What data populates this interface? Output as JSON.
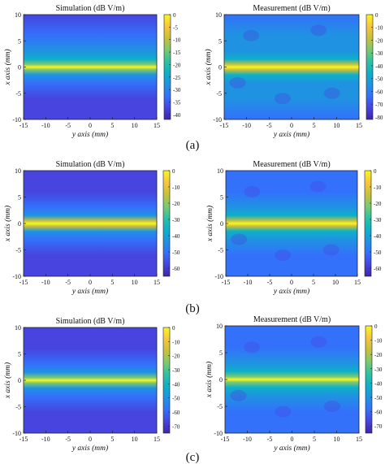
{
  "chart_data": [
    {
      "type": "heatmap",
      "panel": "(a)",
      "side": "simulation",
      "title": "Simulation (dB V/m)",
      "xlabel": "y axis (mm)",
      "ylabel": "x axis (mm)",
      "x_ticks": [
        "-15",
        "-10",
        "-5",
        "0",
        "5",
        "10",
        "15"
      ],
      "y_ticks": [
        "10",
        "5",
        "0",
        "-5",
        "-10"
      ],
      "xlim": [
        -15,
        15
      ],
      "ylim": [
        -10,
        10
      ],
      "colorbar_ticks": [
        "0",
        "-5",
        "-10",
        "-15",
        "-20",
        "-25",
        "-30",
        "-35",
        "-40"
      ],
      "clim": [
        -42,
        0
      ],
      "profile": {
        "x": [
          -10,
          -6,
          -3,
          -1.5,
          -0.5,
          0,
          0.5,
          1.5,
          3,
          6,
          10
        ],
        "dB": [
          -38,
          -36,
          -31,
          -26,
          -13,
          0,
          -12,
          -25,
          -30,
          -35,
          -38
        ]
      }
    },
    {
      "type": "heatmap",
      "panel": "(a)",
      "side": "measurement",
      "title": "Measurement (dB V/m)",
      "xlabel": "y axis (mm)",
      "ylabel": "x axis (mm)",
      "x_ticks": [
        "-15",
        "-10",
        "-5",
        "0",
        "5",
        "10",
        "15"
      ],
      "y_ticks": [
        "10",
        "5",
        "0",
        "-5",
        "-10"
      ],
      "xlim": [
        -15,
        15
      ],
      "ylim": [
        -10,
        10
      ],
      "colorbar_ticks": [
        "0",
        "-10",
        "-20",
        "-30",
        "-40",
        "-50",
        "-60",
        "-70",
        "-80"
      ],
      "clim": [
        -82,
        0
      ],
      "profile": {
        "x": [
          -10,
          -6,
          -3,
          -1.5,
          -0.5,
          0,
          0.5,
          1.5,
          3,
          6,
          10
        ],
        "dB": [
          -62,
          -58,
          -52,
          -42,
          -20,
          0,
          -20,
          -42,
          -52,
          -58,
          -62
        ]
      }
    },
    {
      "type": "heatmap",
      "panel": "(b)",
      "side": "simulation",
      "title": "Simulation (dB V/m)",
      "xlabel": "y axis (mm)",
      "ylabel": "x axis (mm)",
      "x_ticks": [
        "-15",
        "-10",
        "-5",
        "0",
        "5",
        "10",
        "15"
      ],
      "y_ticks": [
        "10",
        "5",
        "0",
        "-5",
        "-10"
      ],
      "xlim": [
        -15,
        15
      ],
      "ylim": [
        -10,
        10
      ],
      "colorbar_ticks": [
        "0",
        "-10",
        "-20",
        "-30",
        "-40",
        "-50",
        "-60"
      ],
      "clim": [
        -65,
        0
      ],
      "profile": {
        "x": [
          -10,
          -6,
          -3,
          -1.5,
          -0.5,
          0,
          0.5,
          1.5,
          3,
          6,
          10
        ],
        "dB": [
          -60,
          -56,
          -48,
          -40,
          -18,
          0,
          -18,
          -40,
          -48,
          -56,
          -60
        ]
      }
    },
    {
      "type": "heatmap",
      "panel": "(b)",
      "side": "measurement",
      "title": "Measurement (dB V/m)",
      "xlabel": "y axis (mm)",
      "ylabel": "x axis (mm)",
      "x_ticks": [
        "-15",
        "-10",
        "-5",
        "0",
        "5",
        "10",
        "15"
      ],
      "y_ticks": [
        "10",
        "5",
        "0",
        "-5",
        "-10"
      ],
      "xlim": [
        -15,
        15
      ],
      "ylim": [
        -10,
        10
      ],
      "colorbar_ticks": [
        "0",
        "-10",
        "-20",
        "-30",
        "-40",
        "-50",
        "-60"
      ],
      "clim": [
        -65,
        0
      ],
      "profile": {
        "x": [
          -10,
          -6,
          -3,
          -1.5,
          -0.5,
          0,
          0.5,
          1.5,
          3,
          6,
          10
        ],
        "dB": [
          -52,
          -48,
          -44,
          -38,
          -18,
          0,
          -18,
          -38,
          -44,
          -48,
          -52
        ]
      }
    },
    {
      "type": "heatmap",
      "panel": "(c)",
      "side": "simulation",
      "title": "Simulation (dB V/m)",
      "xlabel": "y axis (mm)",
      "ylabel": "x axis (mm)",
      "x_ticks": [
        "-15",
        "-10",
        "-5",
        "0",
        "5",
        "10",
        "15"
      ],
      "y_ticks": [
        "10",
        "5",
        "0",
        "-5",
        "-10"
      ],
      "xlim": [
        -15,
        15
      ],
      "ylim": [
        -10,
        10
      ],
      "colorbar_ticks": [
        "0",
        "-10",
        "-20",
        "-30",
        "-40",
        "-50",
        "-60",
        "-70"
      ],
      "clim": [
        -75,
        0
      ],
      "profile": {
        "x": [
          -10,
          -6,
          -3,
          -1.5,
          -0.5,
          0,
          0.5,
          1.5,
          3,
          6,
          10
        ],
        "dB": [
          -70,
          -65,
          -58,
          -48,
          -22,
          0,
          -22,
          -48,
          -58,
          -65,
          -70
        ]
      }
    },
    {
      "type": "heatmap",
      "panel": "(c)",
      "side": "measurement",
      "title": "Measurement (dB V/m)",
      "xlabel": "y axis (mm)",
      "ylabel": "x axis (mm)",
      "x_ticks": [
        "-15",
        "-10",
        "-5",
        "0",
        "5",
        "10",
        "15"
      ],
      "y_ticks": [
        "10",
        "5",
        "0",
        "-5",
        "-10"
      ],
      "xlim": [
        -15,
        15
      ],
      "ylim": [
        -10,
        10
      ],
      "colorbar_ticks": [
        "0",
        "-10",
        "-20",
        "-30",
        "-40",
        "-50",
        "-60",
        "-70"
      ],
      "clim": [
        -75,
        0
      ],
      "profile": {
        "x": [
          -10,
          -6,
          -3,
          -1.5,
          -0.5,
          0,
          0.5,
          1.5,
          3,
          6,
          10
        ],
        "dB": [
          -62,
          -58,
          -52,
          -45,
          -22,
          0,
          -22,
          -45,
          -52,
          -58,
          -62
        ]
      }
    }
  ],
  "subfigure_labels": [
    "(a)",
    "(b)",
    "(c)"
  ],
  "colormap": [
    "#3e26a8",
    "#4744e0",
    "#3371fb",
    "#1f93e1",
    "#0db0c8",
    "#2fc2a0",
    "#7dc96e",
    "#c9c03b",
    "#f7c63c",
    "#f9f623"
  ]
}
